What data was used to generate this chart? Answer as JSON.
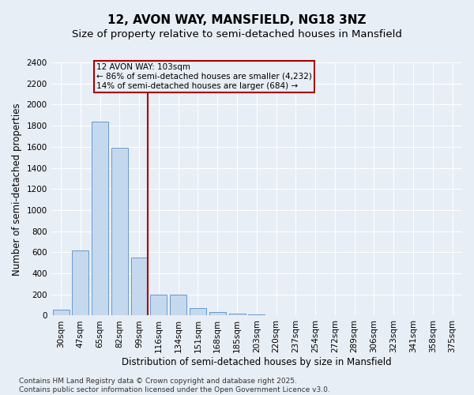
{
  "title": "12, AVON WAY, MANSFIELD, NG18 3NZ",
  "subtitle": "Size of property relative to semi-detached houses in Mansfield",
  "xlabel": "Distribution of semi-detached houses by size in Mansfield",
  "ylabel": "Number of semi-detached properties",
  "categories": [
    "30sqm",
    "47sqm",
    "65sqm",
    "82sqm",
    "99sqm",
    "116sqm",
    "134sqm",
    "151sqm",
    "168sqm",
    "185sqm",
    "203sqm",
    "220sqm",
    "237sqm",
    "254sqm",
    "272sqm",
    "289sqm",
    "306sqm",
    "323sqm",
    "341sqm",
    "358sqm",
    "375sqm"
  ],
  "values": [
    55,
    615,
    1840,
    1590,
    550,
    195,
    195,
    70,
    30,
    20,
    10,
    0,
    0,
    0,
    0,
    0,
    0,
    0,
    0,
    0,
    0
  ],
  "bar_color": "#c5d9ee",
  "bar_edge_color": "#6699cc",
  "marker_color": "#aa0000",
  "annotation_text_line1": "12 AVON WAY: 103sqm",
  "annotation_text_line2": "← 86% of semi-detached houses are smaller (4,232)",
  "annotation_text_line3": "14% of semi-detached houses are larger (684) →",
  "ylim": [
    0,
    2400
  ],
  "yticks": [
    0,
    200,
    400,
    600,
    800,
    1000,
    1200,
    1400,
    1600,
    1800,
    2000,
    2200,
    2400
  ],
  "footer": "Contains HM Land Registry data © Crown copyright and database right 2025.\nContains public sector information licensed under the Open Government Licence v3.0.",
  "bg_color": "#e8eef5",
  "grid_color": "#ffffff",
  "title_fontsize": 11,
  "subtitle_fontsize": 9.5,
  "axis_label_fontsize": 8.5,
  "tick_fontsize": 7.5,
  "annot_fontsize": 7.5,
  "footer_fontsize": 6.5
}
